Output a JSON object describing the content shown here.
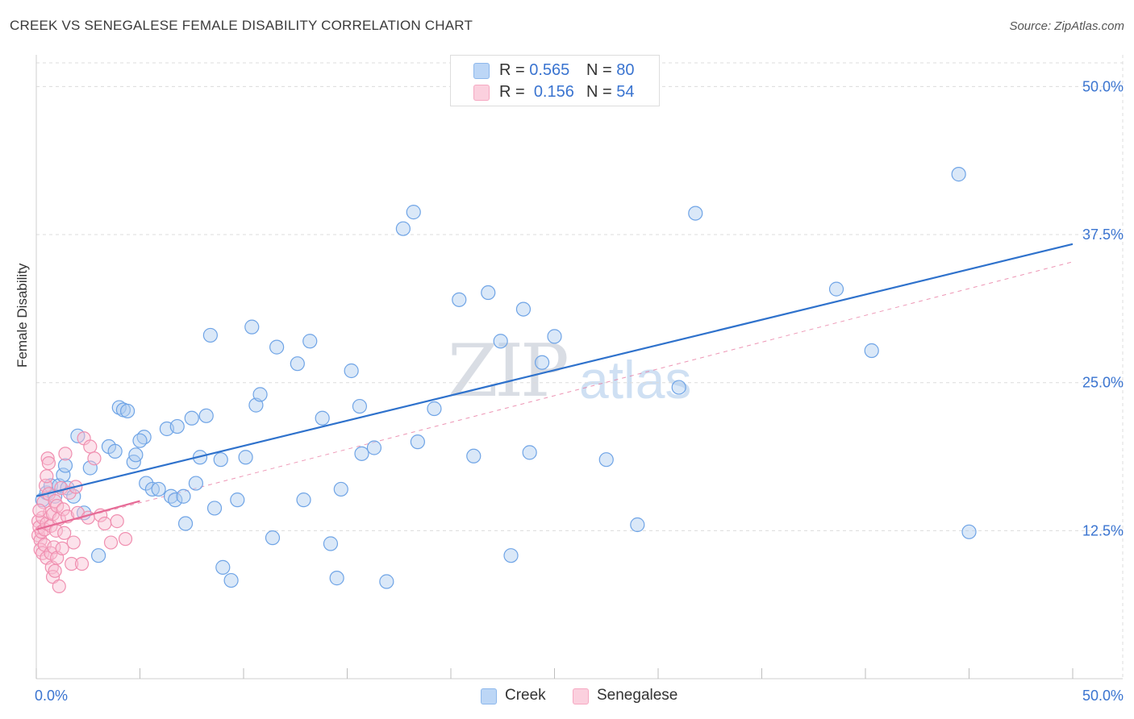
{
  "title": "CREEK VS SENEGALESE FEMALE DISABILITY CORRELATION CHART",
  "source": "Source: ZipAtlas.com",
  "watermark": {
    "zip": "ZIP",
    "atlas": "atlas"
  },
  "legend_top": {
    "rows": [
      {
        "r_label": "R =",
        "r_value": "0.565",
        "n_label": "N =",
        "n_value": "80",
        "color": "#8db8ec"
      },
      {
        "r_label": "R =",
        "r_value": "0.156",
        "n_label": "N =",
        "n_value": "54",
        "color": "#f6a9c2"
      }
    ]
  },
  "legend_bottom": [
    {
      "label": "Creek",
      "color": "#8db8ec"
    },
    {
      "label": "Senegalese",
      "color": "#f6a9c2"
    }
  ],
  "colors": {
    "creek": "#6fa4e6",
    "creek_line": "#2f72cc",
    "senegalese": "#f08fb0",
    "senegalese_line": "#e66a96",
    "axis_text": "#3a74d0",
    "grid": "#dcdcdc"
  },
  "chart_data": {
    "type": "scatter",
    "title": "CREEK VS SENEGALESE FEMALE DISABILITY CORRELATION CHART",
    "xlabel": "",
    "ylabel": "Female Disability",
    "xlim": [
      0,
      50
    ],
    "ylim": [
      0,
      52
    ],
    "x_tick_labels": [
      "0.0%",
      "50.0%"
    ],
    "y_ticks": [
      12.5,
      25.0,
      37.5,
      50.0
    ],
    "y_tick_labels": [
      "12.5%",
      "25.0%",
      "37.5%",
      "50.0%"
    ],
    "grid": true,
    "legend_position": "top-center",
    "series": [
      {
        "name": "Creek",
        "r": 0.565,
        "n": 80,
        "trend": {
          "x": [
            0,
            50
          ],
          "y": [
            15.4,
            36.7
          ]
        },
        "points": [
          [
            0.3,
            15.1
          ],
          [
            0.5,
            15.7
          ],
          [
            0.7,
            16.3
          ],
          [
            0.9,
            15.4
          ],
          [
            1.1,
            16.3
          ],
          [
            1.3,
            17.2
          ],
          [
            1.4,
            18.0
          ],
          [
            1.5,
            16.1
          ],
          [
            1.8,
            15.4
          ],
          [
            2.0,
            20.5
          ],
          [
            2.3,
            14.0
          ],
          [
            2.6,
            17.8
          ],
          [
            3.0,
            10.4
          ],
          [
            3.5,
            19.6
          ],
          [
            3.8,
            19.2
          ],
          [
            4.0,
            22.9
          ],
          [
            4.2,
            22.7
          ],
          [
            4.4,
            22.6
          ],
          [
            4.7,
            18.3
          ],
          [
            4.8,
            18.9
          ],
          [
            5.2,
            20.4
          ],
          [
            5.3,
            16.5
          ],
          [
            5.6,
            16.0
          ],
          [
            5.9,
            16.0
          ],
          [
            6.3,
            21.1
          ],
          [
            6.5,
            15.4
          ],
          [
            6.7,
            15.1
          ],
          [
            6.8,
            21.3
          ],
          [
            7.1,
            15.4
          ],
          [
            7.2,
            13.1
          ],
          [
            7.5,
            22.0
          ],
          [
            7.7,
            16.5
          ],
          [
            7.9,
            18.7
          ],
          [
            8.2,
            22.2
          ],
          [
            8.4,
            29.0
          ],
          [
            8.6,
            14.4
          ],
          [
            8.9,
            18.5
          ],
          [
            9.0,
            9.4
          ],
          [
            9.4,
            8.3
          ],
          [
            9.7,
            15.1
          ],
          [
            10.1,
            18.7
          ],
          [
            10.4,
            29.7
          ],
          [
            10.6,
            23.1
          ],
          [
            10.8,
            24.0
          ],
          [
            11.4,
            11.9
          ],
          [
            11.6,
            28.0
          ],
          [
            12.6,
            26.6
          ],
          [
            12.9,
            15.1
          ],
          [
            13.2,
            28.5
          ],
          [
            13.8,
            22.0
          ],
          [
            14.2,
            11.4
          ],
          [
            14.5,
            8.5
          ],
          [
            14.7,
            16.0
          ],
          [
            15.2,
            26.0
          ],
          [
            15.6,
            23.0
          ],
          [
            15.7,
            19.0
          ],
          [
            16.3,
            19.5
          ],
          [
            17.7,
            38.0
          ],
          [
            18.2,
            39.4
          ],
          [
            18.4,
            20.0
          ],
          [
            19.2,
            22.8
          ],
          [
            20.4,
            32.0
          ],
          [
            21.1,
            18.8
          ],
          [
            21.8,
            32.6
          ],
          [
            22.4,
            28.5
          ],
          [
            22.9,
            10.4
          ],
          [
            23.5,
            31.2
          ],
          [
            23.8,
            19.1
          ],
          [
            24.4,
            26.7
          ],
          [
            25.0,
            28.9
          ],
          [
            27.5,
            18.5
          ],
          [
            29.0,
            13.0
          ],
          [
            31.0,
            24.6
          ],
          [
            31.8,
            39.3
          ],
          [
            38.6,
            32.9
          ],
          [
            40.3,
            27.7
          ],
          [
            44.5,
            42.6
          ],
          [
            45.0,
            12.4
          ],
          [
            16.9,
            8.2
          ],
          [
            5.0,
            20.1
          ]
        ]
      },
      {
        "name": "Senegalese",
        "r": 0.156,
        "n": 54,
        "trend": {
          "x": [
            0,
            5
          ],
          "y": [
            12.6,
            15.0
          ]
        },
        "trend_extension": {
          "x": [
            0,
            50
          ],
          "y": [
            12.6,
            35.2
          ]
        },
        "points": [
          [
            0.1,
            13.3
          ],
          [
            0.1,
            12.1
          ],
          [
            0.15,
            12.8
          ],
          [
            0.2,
            11.7
          ],
          [
            0.2,
            10.9
          ],
          [
            0.25,
            12.4
          ],
          [
            0.3,
            13.6
          ],
          [
            0.3,
            10.6
          ],
          [
            0.35,
            14.9
          ],
          [
            0.4,
            12.6
          ],
          [
            0.4,
            11.3
          ],
          [
            0.45,
            16.3
          ],
          [
            0.5,
            13.1
          ],
          [
            0.5,
            10.2
          ],
          [
            0.55,
            18.6
          ],
          [
            0.6,
            18.2
          ],
          [
            0.6,
            15.6
          ],
          [
            0.65,
            14.0
          ],
          [
            0.7,
            12.9
          ],
          [
            0.7,
            10.6
          ],
          [
            0.75,
            9.4
          ],
          [
            0.8,
            8.6
          ],
          [
            0.8,
            13.9
          ],
          [
            0.85,
            11.1
          ],
          [
            0.9,
            15.0
          ],
          [
            0.95,
            12.5
          ],
          [
            1.0,
            10.2
          ],
          [
            1.0,
            14.6
          ],
          [
            1.1,
            13.5
          ],
          [
            1.1,
            7.8
          ],
          [
            1.2,
            16.1
          ],
          [
            1.25,
            11.0
          ],
          [
            1.3,
            14.3
          ],
          [
            1.35,
            12.3
          ],
          [
            1.4,
            19.0
          ],
          [
            1.5,
            13.7
          ],
          [
            1.6,
            15.7
          ],
          [
            1.7,
            9.7
          ],
          [
            1.8,
            11.5
          ],
          [
            1.9,
            16.2
          ],
          [
            2.0,
            14.0
          ],
          [
            2.2,
            9.7
          ],
          [
            2.3,
            20.3
          ],
          [
            2.5,
            13.6
          ],
          [
            2.6,
            19.6
          ],
          [
            2.8,
            18.6
          ],
          [
            3.1,
            13.8
          ],
          [
            3.3,
            13.1
          ],
          [
            3.6,
            11.5
          ],
          [
            3.9,
            13.3
          ],
          [
            4.3,
            11.8
          ],
          [
            0.15,
            14.2
          ],
          [
            0.5,
            17.1
          ],
          [
            0.9,
            9.1
          ]
        ]
      }
    ]
  }
}
